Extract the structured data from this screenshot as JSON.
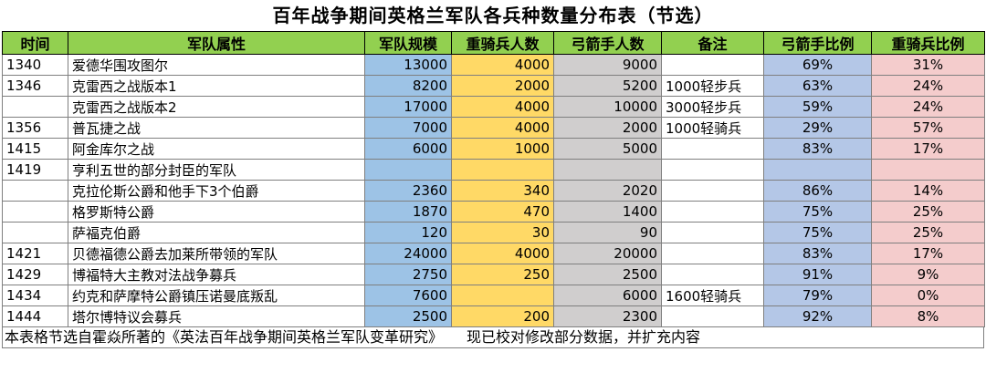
{
  "title": "百年战争期间英格兰军队各兵种数量分布表（节选）",
  "headers": [
    "时间",
    "军队属性",
    "军队规模",
    "重骑兵人数",
    "弓箭手人数",
    "备注",
    "弓箭手比例",
    "重骑兵比例"
  ],
  "rows": [
    {
      "year": "1340",
      "name": "爱德华围攻图尔",
      "army": "13000",
      "heavy": "4000",
      "archers": "9000",
      "note": "",
      "archer_pct": "69%",
      "heavy_pct": "31%"
    },
    {
      "year": "1346",
      "name": "克雷西之战版本1",
      "army": "8200",
      "heavy": "2000",
      "archers": "5200",
      "note": "1000轻步兵",
      "archer_pct": "63%",
      "heavy_pct": "24%"
    },
    {
      "year": "",
      "name": "克雷西之战版本2",
      "army": "17000",
      "heavy": "4000",
      "archers": "10000",
      "note": "3000轻步兵",
      "archer_pct": "59%",
      "heavy_pct": "24%"
    },
    {
      "year": "1356",
      "name": "普瓦捷之战",
      "army": "7000",
      "heavy": "4000",
      "archers": "2000",
      "note": "1000轻骑兵",
      "archer_pct": "29%",
      "heavy_pct": "57%"
    },
    {
      "year": "1415",
      "name": "阿金库尔之战",
      "army": "6000",
      "heavy": "1000",
      "archers": "5000",
      "note": "",
      "archer_pct": "83%",
      "heavy_pct": "17%"
    },
    {
      "year": "1419",
      "name": "亨利五世的部分封臣的军队",
      "army": "",
      "heavy": "",
      "archers": "",
      "note": "",
      "archer_pct": "",
      "heavy_pct": ""
    },
    {
      "year": "",
      "name": "克拉伦斯公爵和他手下3个伯爵",
      "army": "2360",
      "heavy": "340",
      "archers": "2020",
      "note": "",
      "archer_pct": "86%",
      "heavy_pct": "14%"
    },
    {
      "year": "",
      "name": "格罗斯特公爵",
      "army": "1870",
      "heavy": "470",
      "archers": "1400",
      "note": "",
      "archer_pct": "75%",
      "heavy_pct": "25%"
    },
    {
      "year": "",
      "name": "萨福克伯爵",
      "army": "120",
      "heavy": "30",
      "archers": "90",
      "note": "",
      "archer_pct": "75%",
      "heavy_pct": "25%"
    },
    {
      "year": "1421",
      "name": "贝德福德公爵去加莱所带领的军队",
      "army": "24000",
      "heavy": "4000",
      "archers": "20000",
      "note": "",
      "archer_pct": "83%",
      "heavy_pct": "17%"
    },
    {
      "year": "1429",
      "name": "博福特大主教对法战争募兵",
      "army": "2750",
      "heavy": "250",
      "archers": "2500",
      "note": "",
      "archer_pct": "91%",
      "heavy_pct": "9%"
    },
    {
      "year": "1434",
      "name": "约克和萨摩特公爵镇压诺曼底叛乱",
      "army": "7600",
      "heavy": "",
      "archers": "6000",
      "note": "1600轻骑兵",
      "archer_pct": "79%",
      "heavy_pct": "0%"
    },
    {
      "year": "1444",
      "name": "塔尔博特议会募兵",
      "army": "2500",
      "heavy": "200",
      "archers": "2300",
      "note": "",
      "archer_pct": "92%",
      "heavy_pct": "8%"
    }
  ],
  "footer": {
    "source": "本表格节选自霍焱所著的《英法百年战争期间英格兰军队变革研究》",
    "note": "现已校对修改部分数据，并扩充内容"
  },
  "colors": {
    "header_bg": "#92d050",
    "army_bg": "#9dc3e6",
    "heavy_bg": "#ffd966",
    "archers_bg": "#d0cece",
    "archer_pct_bg": "#b4c7e7",
    "heavy_pct_bg": "#f4cccc"
  }
}
